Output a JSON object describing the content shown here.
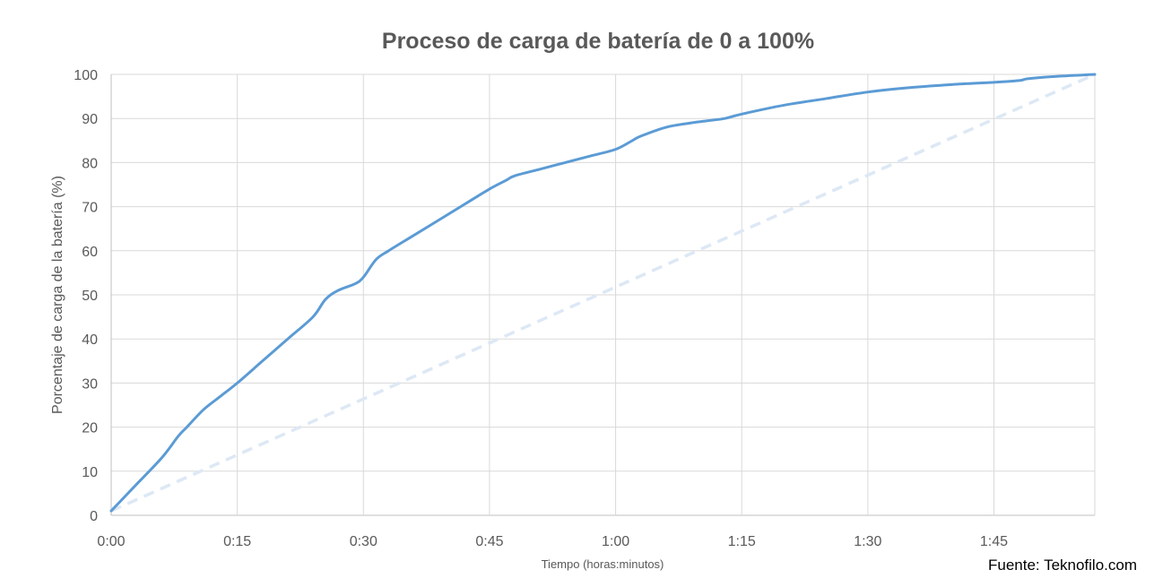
{
  "chart_data": {
    "type": "line",
    "title": "Proceso de carga de batería de 0 a 100%",
    "xlabel": "Tiempo (horas:minutos)",
    "ylabel": "Porcentaje de carga de la batería (%)",
    "x_unit": "minutes",
    "xlim": [
      0,
      117
    ],
    "ylim": [
      0,
      100
    ],
    "x_ticks": [
      {
        "value": 0,
        "label": "0:00"
      },
      {
        "value": 15,
        "label": "0:15"
      },
      {
        "value": 30,
        "label": "0:30"
      },
      {
        "value": 45,
        "label": "0:45"
      },
      {
        "value": 60,
        "label": "1:00"
      },
      {
        "value": 75,
        "label": "1:15"
      },
      {
        "value": 90,
        "label": "1:30"
      },
      {
        "value": 105,
        "label": "1:45"
      }
    ],
    "y_ticks": [
      0,
      10,
      20,
      30,
      40,
      50,
      60,
      70,
      80,
      90,
      100
    ],
    "grid": true,
    "legend": "none",
    "series": [
      {
        "style": "solid",
        "color": "#5b9bd5",
        "x": [
          0,
          1,
          3,
          6,
          8,
          9,
          11,
          13,
          15,
          18,
          21,
          24,
          25.5,
          27,
          29,
          30,
          31.5,
          33,
          36,
          39,
          42,
          45,
          47,
          48,
          51,
          54,
          57,
          60,
          62,
          63,
          66,
          69,
          71,
          73,
          75,
          80,
          85,
          90,
          95,
          100,
          105,
          108,
          109,
          112,
          117
        ],
        "y": [
          1,
          3,
          7,
          13,
          18,
          20,
          24,
          27,
          30,
          35,
          40,
          45,
          49,
          51,
          52.5,
          54,
          58,
          60,
          63.5,
          67,
          70.5,
          74,
          76,
          77,
          78.5,
          80,
          81.5,
          83,
          85,
          86,
          88,
          89,
          89.5,
          90,
          91,
          93,
          94.5,
          96,
          97,
          97.7,
          98.2,
          98.6,
          99,
          99.5,
          100
        ]
      },
      {
        "style": "dashed",
        "color": "#dde8f5",
        "x": [
          0,
          117
        ],
        "y": [
          1,
          100
        ]
      }
    ]
  },
  "source": "Fuente: Teknofilo.com"
}
